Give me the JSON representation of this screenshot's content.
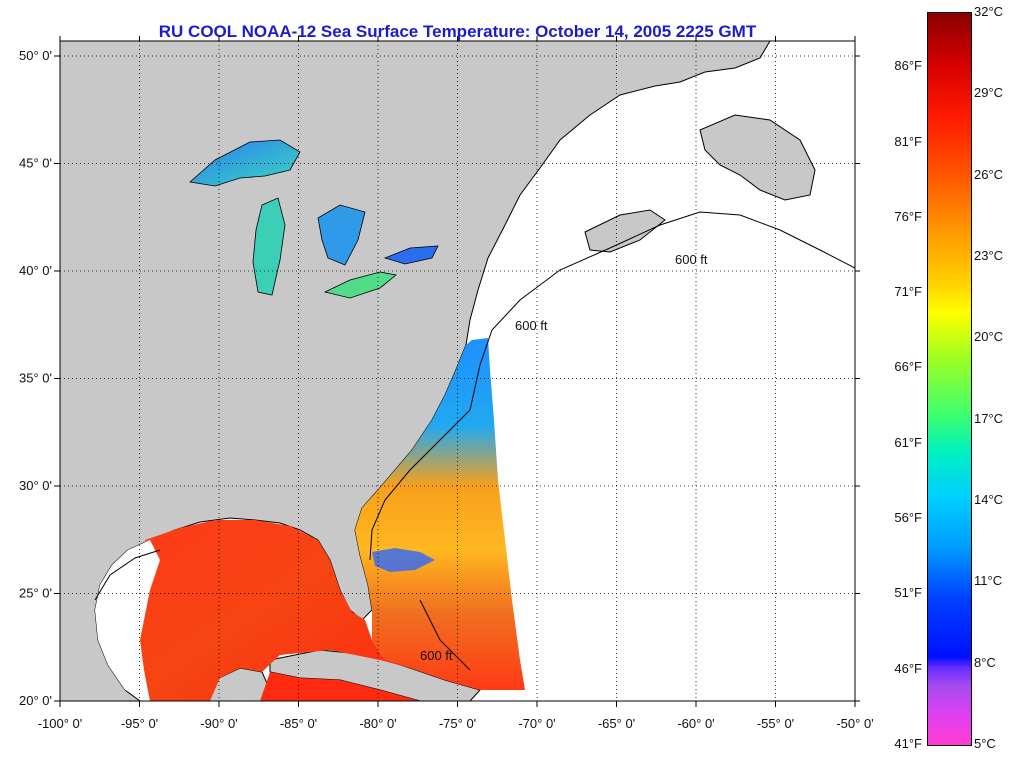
{
  "title": "RU COOL  NOAA-12  Sea Surface Temperature:  October 14, 2005 2225 GMT",
  "map": {
    "lat_labels": [
      "20° 0'",
      "25° 0'",
      "30° 0'",
      "35° 0'",
      "40° 0'",
      "45° 0'",
      "50° 0'"
    ],
    "lon_labels": [
      "-100° 0'",
      "-95° 0'",
      "-90° 0'",
      "-85° 0'",
      "-80° 0'",
      "-75° 0'",
      "-70° 0'",
      "-65° 0'",
      "-60° 0'",
      "-55° 0'",
      "-50° 0'"
    ],
    "contour_label": "600 ft",
    "colors": {
      "land": "#c8c8c8",
      "ocean_nodata": "#ffffff",
      "outline": "#000000",
      "grid": "#000000"
    }
  },
  "colorbar": {
    "celsius": [
      "32°C",
      "29°C",
      "26°C",
      "23°C",
      "20°C",
      "17°C",
      "14°C",
      "11°C",
      "8°C",
      "5°C"
    ],
    "fahrenheit": [
      "86°F",
      "81°F",
      "76°F",
      "71°F",
      "66°F",
      "61°F",
      "56°F",
      "51°F",
      "46°F",
      "41°F"
    ]
  }
}
